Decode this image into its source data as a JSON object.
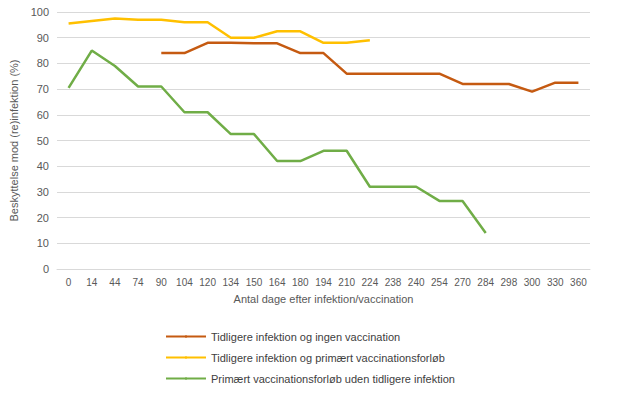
{
  "chart_data": {
    "type": "line",
    "x_label": "Antal dage efter infektion/vaccination",
    "y_label": "Beskyttelse mod (re)infektion (%)",
    "categories": [
      "0",
      "14",
      "44",
      "74",
      "90",
      "104",
      "120",
      "134",
      "150",
      "164",
      "180",
      "194",
      "210",
      "224",
      "238",
      "240",
      "254",
      "270",
      "284",
      "298",
      "300",
      "330",
      "360"
    ],
    "series": [
      {
        "name": "Tidligere infektion og ingen vaccination",
        "color": "#c55a11",
        "values": [
          null,
          null,
          null,
          null,
          84,
          84,
          88,
          88,
          87.8,
          87.8,
          84,
          84,
          76,
          76,
          76,
          76,
          76,
          72,
          72,
          72,
          69,
          72.5,
          72.5
        ]
      },
      {
        "name": "Tidligere infektion og primært vaccinationsforløb",
        "color": "#ffc000",
        "values": [
          95.5,
          96.5,
          97.5,
          97,
          97,
          96,
          96,
          90,
          90,
          92.5,
          92.5,
          88,
          88,
          89,
          null,
          null,
          null,
          null,
          null,
          null,
          null,
          null,
          null
        ]
      },
      {
        "name": "Primært vaccinationsforløb uden tidligere infektion",
        "color": "#70ad47",
        "values": [
          70.5,
          85,
          79,
          71,
          71,
          61,
          61,
          52.5,
          52.5,
          42,
          42,
          46,
          46,
          32,
          32,
          32,
          26.5,
          26.5,
          14,
          null,
          null,
          null,
          null
        ]
      }
    ],
    "ylim": [
      0,
      100
    ],
    "yticks": [
      0,
      10,
      20,
      30,
      40,
      50,
      60,
      70,
      80,
      90,
      100
    ],
    "grid": true,
    "legend": "bottom"
  }
}
